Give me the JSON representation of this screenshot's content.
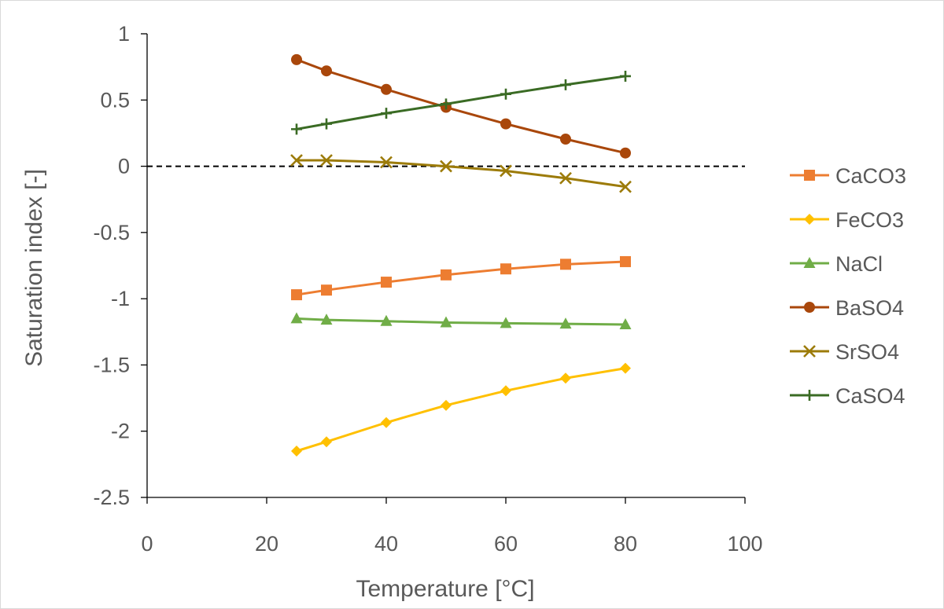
{
  "chart_data": {
    "type": "line",
    "title": "",
    "xlabel": "Temperature [°C]",
    "ylabel": "Saturation index [-]",
    "xlim": [
      0,
      100
    ],
    "ylim": [
      -2.5,
      1
    ],
    "x_ticks": [
      "0",
      "20",
      "40",
      "60",
      "80",
      "100"
    ],
    "y_ticks": [
      "1",
      "0.5",
      "0",
      "-0.5",
      "-1",
      "-1.5",
      "-2",
      "-2.5"
    ],
    "grid": false,
    "legend_position": "right",
    "reference_line": {
      "y": 0,
      "style": "dashed",
      "color": "#000000"
    },
    "x": [
      25,
      30,
      40,
      50,
      60,
      70,
      80
    ],
    "series": [
      {
        "name": "CaCO3",
        "color": "#ED7D31",
        "marker": "square",
        "values": [
          -0.97,
          -0.935,
          -0.875,
          -0.82,
          -0.775,
          -0.74,
          -0.72
        ]
      },
      {
        "name": "FeCO3",
        "color": "#FFC000",
        "marker": "diamond",
        "values": [
          -2.15,
          -2.08,
          -1.935,
          -1.805,
          -1.695,
          -1.6,
          -1.525
        ]
      },
      {
        "name": "NaCl",
        "color": "#70AD47",
        "marker": "triangle",
        "values": [
          -1.15,
          -1.16,
          -1.17,
          -1.18,
          -1.185,
          -1.19,
          -1.195
        ]
      },
      {
        "name": "BaSO4",
        "color": "#A9470B",
        "marker": "circle",
        "values": [
          0.805,
          0.72,
          0.58,
          0.445,
          0.32,
          0.205,
          0.1
        ]
      },
      {
        "name": "SrSO4",
        "color": "#9C7B09",
        "marker": "x",
        "values": [
          0.045,
          0.045,
          0.03,
          0.0,
          -0.035,
          -0.09,
          -0.155
        ]
      },
      {
        "name": "CaSO4",
        "color": "#3A6B24",
        "marker": "plus",
        "values": [
          0.28,
          0.32,
          0.4,
          0.47,
          0.545,
          0.615,
          0.68
        ]
      }
    ]
  }
}
